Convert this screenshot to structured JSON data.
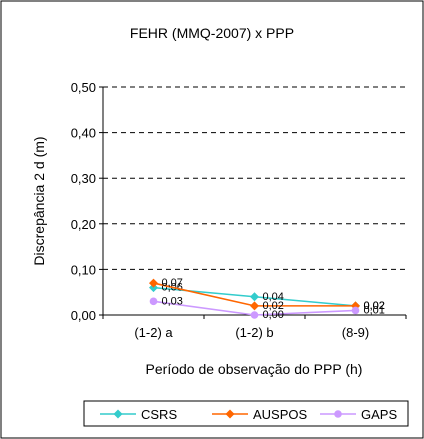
{
  "chart_data": {
    "type": "line",
    "title": "FEHR (MMQ-2007) x PPP",
    "xlabel": "Período de observação do PPP (h)",
    "ylabel": "Discrepância 2 d (m)",
    "categories": [
      "(1-2) a",
      "(1-2) b",
      "(8-9)"
    ],
    "ylim": [
      0,
      0.5
    ],
    "yticks": [
      "0,00",
      "0,10",
      "0,20",
      "0,30",
      "0,40",
      "0,50"
    ],
    "ytick_values": [
      0,
      0.1,
      0.2,
      0.3,
      0.4,
      0.5
    ],
    "grid": true,
    "legend_position": "bottom",
    "series": [
      {
        "name": "CSRS",
        "color": "#33cccc",
        "marker": "diamond",
        "values": [
          0.06,
          0.04,
          0.02
        ],
        "labels": [
          "0,06",
          "0,04",
          "0,02"
        ]
      },
      {
        "name": "AUSPOS",
        "color": "#ff6600",
        "marker": "diamond",
        "values": [
          0.07,
          0.02,
          0.02
        ],
        "labels": [
          "0,07",
          "0,02",
          "0,02"
        ]
      },
      {
        "name": "GAPS",
        "color": "#cc99ff",
        "marker": "circle",
        "values": [
          0.03,
          0.0,
          0.01
        ],
        "labels": [
          "0,03",
          "0,00",
          "0,01"
        ]
      }
    ]
  }
}
